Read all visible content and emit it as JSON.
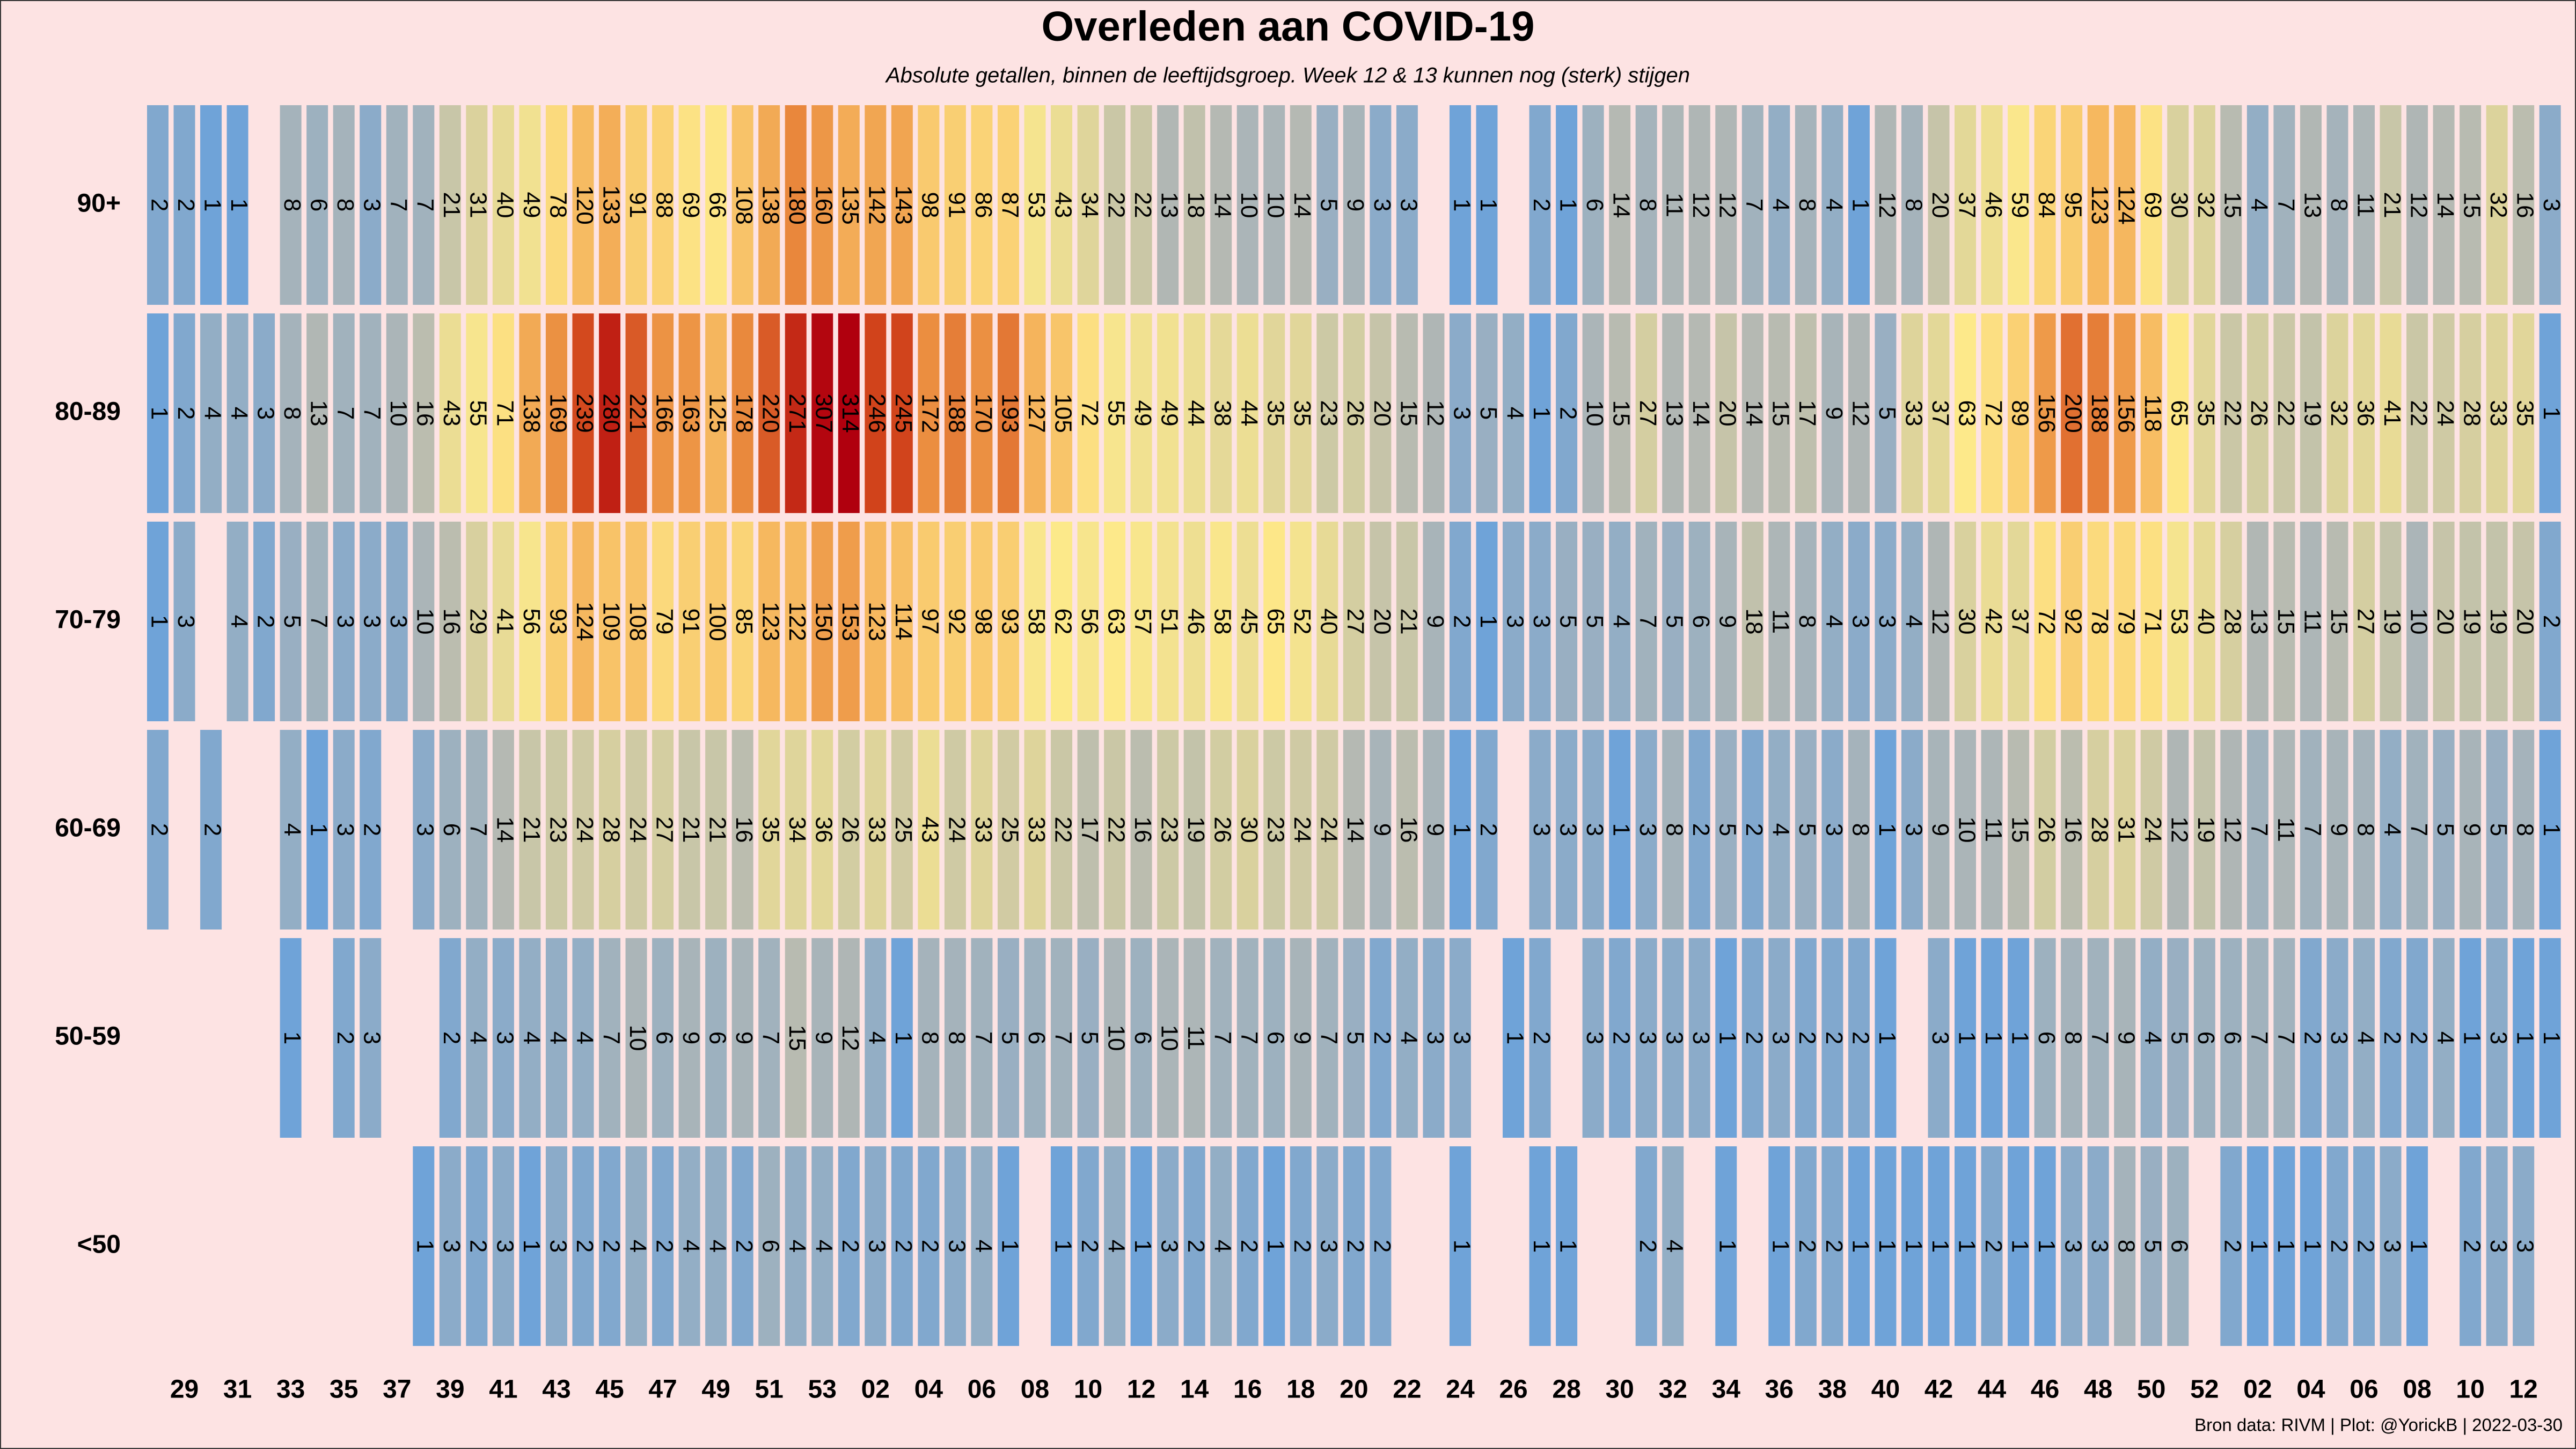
{
  "chart_data": {
    "type": "heatmap",
    "title": "Overleden aan COVID-19",
    "subtitle": "Absolute getallen, binnen de leeftijdsgroep. Week 12 & 13 kunnen nog (sterk) stijgen",
    "caption": "Bron data: RIVM | Plot: @YorickB |  2022-03-30",
    "categories": [
      null,
      "29",
      null,
      "31",
      null,
      "33",
      null,
      "35",
      null,
      "37",
      null,
      "39",
      null,
      "41",
      null,
      "43",
      null,
      "45",
      null,
      "47",
      null,
      "49",
      null,
      "51",
      null,
      "53",
      null,
      "02",
      null,
      "04",
      null,
      "06",
      null,
      "08",
      null,
      "10",
      null,
      "12",
      null,
      "14",
      null,
      "16",
      null,
      "18",
      null,
      "20",
      null,
      "22",
      null,
      "24",
      null,
      "26",
      null,
      "28",
      null,
      "30",
      null,
      "32",
      null,
      "34",
      null,
      "36",
      null,
      "38",
      null,
      "40",
      null,
      "42",
      null,
      "44",
      null,
      "46",
      null,
      "48",
      null,
      "50",
      null,
      "52",
      null,
      "02",
      null,
      "04",
      null,
      "06",
      null,
      "08",
      null,
      "10",
      null,
      "12",
      null
    ],
    "rows": [
      "90+",
      "80-89",
      "70-79",
      "60-69",
      "50-59",
      "<50"
    ],
    "values": [
      [
        2,
        2,
        1,
        1,
        null,
        8,
        6,
        8,
        3,
        7,
        7,
        21,
        31,
        40,
        49,
        78,
        120,
        133,
        91,
        88,
        69,
        66,
        108,
        138,
        180,
        160,
        135,
        142,
        143,
        98,
        91,
        86,
        87,
        53,
        43,
        34,
        22,
        22,
        13,
        18,
        14,
        10,
        10,
        14,
        5,
        9,
        3,
        3,
        null,
        1,
        1,
        null,
        2,
        1,
        6,
        14,
        8,
        11,
        12,
        12,
        7,
        4,
        8,
        4,
        1,
        12,
        8,
        20,
        37,
        46,
        59,
        84,
        95,
        123,
        124,
        69,
        30,
        32,
        15,
        4,
        7,
        13,
        8,
        11,
        21,
        12,
        14,
        15,
        32,
        16,
        3
      ],
      [
        1,
        2,
        4,
        4,
        3,
        8,
        13,
        7,
        7,
        10,
        16,
        43,
        55,
        71,
        138,
        169,
        239,
        280,
        221,
        166,
        163,
        125,
        178,
        220,
        271,
        307,
        314,
        246,
        245,
        172,
        188,
        170,
        193,
        127,
        105,
        72,
        55,
        49,
        49,
        44,
        38,
        44,
        35,
        35,
        23,
        26,
        20,
        15,
        12,
        3,
        5,
        4,
        1,
        2,
        10,
        15,
        27,
        13,
        14,
        20,
        14,
        15,
        17,
        9,
        12,
        5,
        33,
        37,
        63,
        72,
        89,
        156,
        200,
        188,
        156,
        118,
        65,
        35,
        22,
        26,
        22,
        19,
        32,
        36,
        41,
        22,
        24,
        28,
        33,
        35,
        1
      ],
      [
        1,
        3,
        null,
        4,
        2,
        5,
        7,
        3,
        3,
        3,
        10,
        16,
        29,
        41,
        56,
        93,
        124,
        109,
        108,
        79,
        91,
        100,
        85,
        123,
        122,
        150,
        153,
        123,
        114,
        97,
        92,
        98,
        93,
        58,
        62,
        56,
        63,
        57,
        51,
        46,
        58,
        45,
        65,
        52,
        40,
        27,
        20,
        21,
        9,
        2,
        1,
        3,
        3,
        5,
        5,
        4,
        7,
        5,
        6,
        9,
        18,
        11,
        8,
        4,
        3,
        3,
        4,
        12,
        30,
        42,
        37,
        72,
        92,
        78,
        79,
        71,
        53,
        40,
        28,
        13,
        15,
        11,
        15,
        27,
        19,
        10,
        20,
        19,
        19,
        20,
        2
      ],
      [
        2,
        null,
        2,
        null,
        null,
        4,
        1,
        3,
        2,
        null,
        3,
        6,
        7,
        14,
        21,
        23,
        24,
        28,
        24,
        27,
        21,
        21,
        16,
        35,
        34,
        36,
        26,
        33,
        25,
        43,
        24,
        33,
        25,
        33,
        22,
        17,
        22,
        16,
        23,
        19,
        26,
        30,
        23,
        24,
        24,
        14,
        9,
        16,
        9,
        1,
        2,
        null,
        3,
        3,
        3,
        1,
        3,
        8,
        2,
        5,
        2,
        4,
        5,
        3,
        8,
        1,
        3,
        9,
        10,
        11,
        15,
        26,
        16,
        28,
        31,
        24,
        12,
        19,
        12,
        7,
        11,
        7,
        9,
        8,
        4,
        7,
        5,
        9,
        5,
        8,
        1
      ],
      [
        null,
        null,
        null,
        null,
        null,
        1,
        null,
        2,
        3,
        null,
        null,
        2,
        4,
        3,
        4,
        4,
        4,
        7,
        10,
        6,
        9,
        6,
        9,
        7,
        15,
        9,
        12,
        4,
        1,
        8,
        8,
        7,
        5,
        6,
        7,
        5,
        10,
        6,
        10,
        11,
        7,
        7,
        6,
        9,
        7,
        5,
        2,
        4,
        3,
        3,
        null,
        1,
        2,
        null,
        3,
        2,
        3,
        3,
        3,
        1,
        2,
        3,
        2,
        2,
        2,
        1,
        null,
        3,
        1,
        1,
        1,
        6,
        8,
        7,
        9,
        4,
        5,
        6,
        6,
        7,
        7,
        2,
        3,
        4,
        2,
        2,
        4,
        1,
        3,
        1,
        1
      ],
      [
        null,
        null,
        null,
        null,
        null,
        null,
        null,
        null,
        null,
        null,
        1,
        3,
        2,
        3,
        1,
        3,
        2,
        2,
        4,
        2,
        4,
        4,
        2,
        6,
        4,
        4,
        2,
        3,
        2,
        2,
        3,
        4,
        1,
        null,
        1,
        2,
        4,
        1,
        3,
        2,
        4,
        2,
        1,
        2,
        3,
        2,
        2,
        null,
        null,
        1,
        null,
        null,
        1,
        1,
        null,
        null,
        2,
        4,
        null,
        1,
        null,
        1,
        2,
        2,
        1,
        1,
        1,
        1,
        1,
        2,
        1,
        1,
        3,
        3,
        8,
        5,
        6,
        null,
        2,
        1,
        1,
        1,
        2,
        2,
        3,
        1,
        null,
        2,
        3,
        3,
        null
      ]
    ],
    "colors": [
      "#6fa3d8",
      "#b2b7b4",
      "#fde98a",
      "#f7bd63",
      "#ea8b3e",
      "#d0401a",
      "#b0000e"
    ],
    "log_color_scale": true
  }
}
